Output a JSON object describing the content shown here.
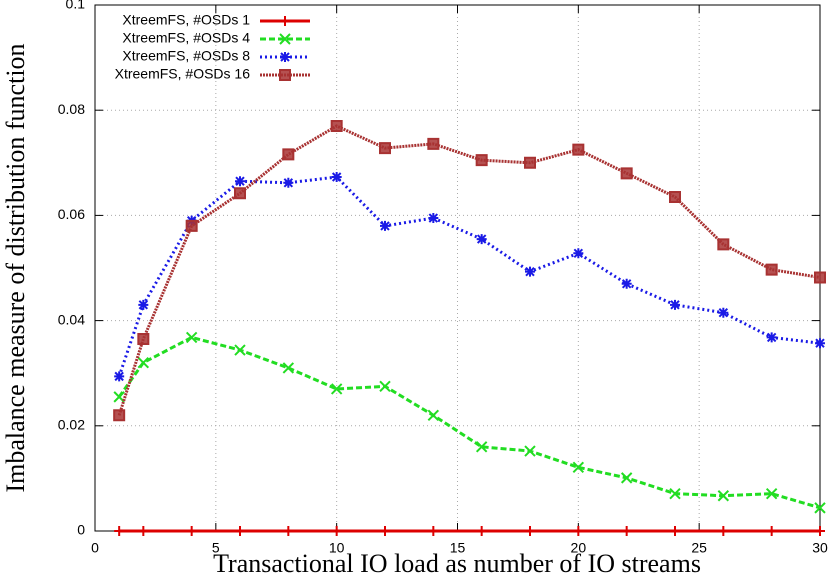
{
  "chart_data": {
    "type": "line",
    "x_label": "Transactional IO load as number of IO streams",
    "y_label": "Imbalance measure of distribution function",
    "x": [
      1,
      2,
      4,
      6,
      8,
      10,
      12,
      14,
      16,
      18,
      20,
      22,
      24,
      26,
      28,
      30
    ],
    "series": [
      {
        "name": "XtreemFS, #OSDs 1",
        "color": "#dd0000",
        "values": [
          0,
          0,
          0,
          0,
          0,
          0,
          0,
          0,
          0,
          0,
          0,
          0,
          0,
          0,
          0,
          0
        ]
      },
      {
        "name": "XtreemFS, #OSDs 4",
        "color": "#22dd22",
        "values": [
          0.0255,
          0.032,
          0.0368,
          0.0344,
          0.031,
          0.027,
          0.0275,
          0.022,
          0.016,
          0.0152,
          0.0121,
          0.0101,
          0.0071,
          0.0067,
          0.0071,
          0.0044
        ]
      },
      {
        "name": "XtreemFS, #OSDs 8",
        "color": "#1a1ae6",
        "values": [
          0.0294,
          0.043,
          0.059,
          0.0665,
          0.0662,
          0.0673,
          0.058,
          0.0595,
          0.0555,
          0.0493,
          0.0528,
          0.047,
          0.043,
          0.0415,
          0.0368,
          0.0357
        ]
      },
      {
        "name": "XtreemFS, #OSDs 16",
        "color": "#a83232",
        "values": [
          0.022,
          0.0365,
          0.058,
          0.0642,
          0.0716,
          0.077,
          0.0728,
          0.0736,
          0.0705,
          0.07,
          0.0725,
          0.068,
          0.0635,
          0.0545,
          0.0497,
          0.0482
        ]
      }
    ],
    "xlim": [
      0,
      30
    ],
    "xticks": [
      0,
      5,
      10,
      15,
      20,
      25,
      30
    ],
    "ylim": [
      0,
      0.1
    ],
    "yticks": [
      0,
      0.02,
      0.04,
      0.06,
      0.08,
      0.1
    ],
    "grid": true,
    "legend": "top-left"
  }
}
